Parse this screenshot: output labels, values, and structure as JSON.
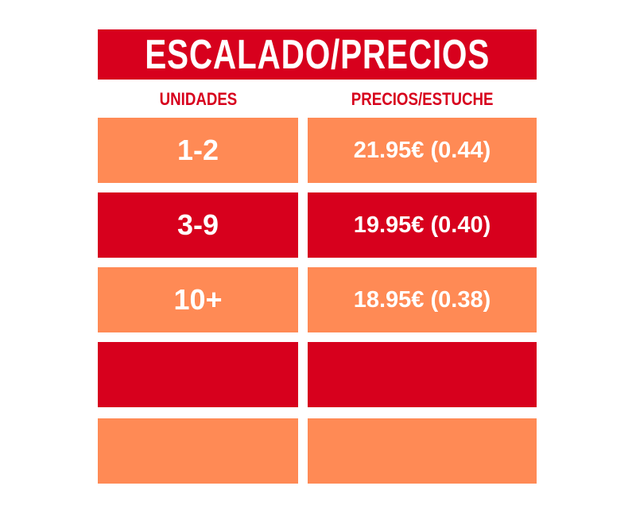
{
  "header": {
    "title": "ESCALADO/PRECIOS"
  },
  "table": {
    "columns": [
      "UNIDADES",
      "PRECIOS/ESTUCHE"
    ],
    "rows": [
      [
        "1-2",
        "21.95€ (0.44)"
      ],
      [
        "3-9",
        "19.95€ (0.40)"
      ],
      [
        "10+",
        "18.95€ (0.38)"
      ]
    ]
  }
}
